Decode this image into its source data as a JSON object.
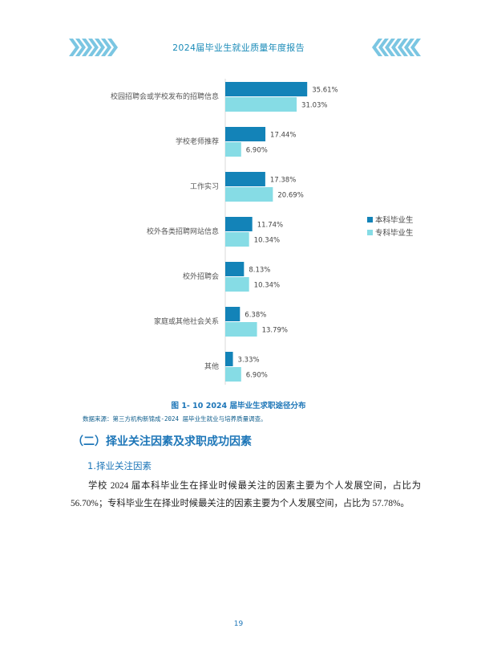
{
  "header": {
    "report_title": "2024届毕业生就业质量年度报告"
  },
  "chart_data": {
    "type": "bar",
    "orientation": "horizontal",
    "categories": [
      "校园招聘会或学校发布的招聘信息",
      "学校老师推荐",
      "工作实习",
      "校外各类招聘网站信息",
      "校外招聘会",
      "家庭或其他社会关系",
      "其他"
    ],
    "series": [
      {
        "name": "本科毕业生",
        "color": "#1383b8",
        "values": [
          35.61,
          17.44,
          17.38,
          11.74,
          8.13,
          6.38,
          3.33
        ],
        "labels": [
          "35.61%",
          "17.44%",
          "17.38%",
          "11.74%",
          "8.13%",
          "6.38%",
          "3.33%"
        ]
      },
      {
        "name": "专科毕业生",
        "color": "#86dce5",
        "values": [
          31.03,
          6.9,
          20.69,
          10.34,
          10.34,
          13.79,
          6.9
        ],
        "labels": [
          "31.03%",
          "6.90%",
          "20.69%",
          "10.34%",
          "10.34%",
          "13.79%",
          "6.90%"
        ]
      }
    ],
    "unit": "%",
    "xlim": [
      0,
      100
    ],
    "legend_position": "right",
    "grid": false
  },
  "figure": {
    "caption": "图 1- 10  2024 届毕业生求职途径分布",
    "source": "数据来源：第三方机构新锦成-2024 届毕业生就业与培养质量调查。"
  },
  "section": {
    "heading": "（二）择业关注因素及求职成功因素",
    "subheading": "1.择业关注因素",
    "paragraph": "学校 2024 届本科毕业生在择业时候最关注的因素主要为个人发展空间，占比为 56.70%；专科毕业生在择业时候最关注的因素主要为个人发展空间，占比为 57.78%。"
  },
  "page_number": "19"
}
